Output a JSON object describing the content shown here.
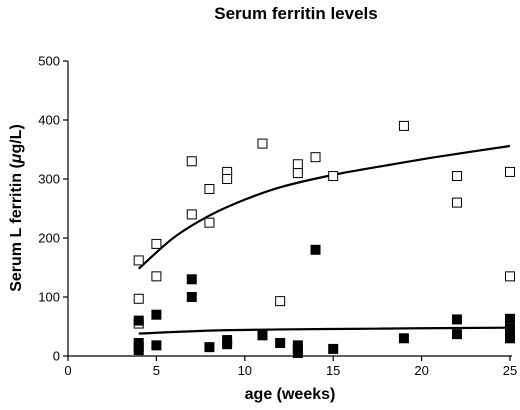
{
  "chart_data": {
    "type": "scatter",
    "title": "Serum ferritin levels",
    "xlabel": "age (weeks)",
    "ylabel_parts": [
      "Serum L ferritin (",
      "μ",
      "g/L)"
    ],
    "xlim": [
      0,
      25
    ],
    "ylim": [
      0,
      500
    ],
    "xticks": [
      0,
      5,
      10,
      15,
      20,
      25
    ],
    "yticks": [
      0,
      100,
      200,
      300,
      400,
      500
    ],
    "grid": false,
    "series": [
      {
        "marker": "open-square",
        "points": [
          [
            4,
            162
          ],
          [
            4,
            97
          ],
          [
            4,
            55
          ],
          [
            5,
            190
          ],
          [
            5,
            135
          ],
          [
            7,
            330
          ],
          [
            7,
            240
          ],
          [
            8,
            283
          ],
          [
            8,
            226
          ],
          [
            9,
            312
          ],
          [
            9,
            300
          ],
          [
            11,
            360
          ],
          [
            12,
            93
          ],
          [
            13,
            325
          ],
          [
            13,
            310
          ],
          [
            14,
            337
          ],
          [
            15,
            305
          ],
          [
            19,
            390
          ],
          [
            22,
            305
          ],
          [
            22,
            260
          ],
          [
            25,
            312
          ],
          [
            25,
            135
          ]
        ],
        "fit": [
          [
            4,
            148
          ],
          [
            6,
            201
          ],
          [
            8,
            238
          ],
          [
            10,
            265
          ],
          [
            12,
            286
          ],
          [
            15,
            307
          ],
          [
            18,
            323
          ],
          [
            21,
            338
          ],
          [
            25,
            356
          ]
        ]
      },
      {
        "marker": "filled-square",
        "points": [
          [
            4,
            60
          ],
          [
            4,
            22
          ],
          [
            4,
            15
          ],
          [
            4,
            10
          ],
          [
            5,
            70
          ],
          [
            5,
            18
          ],
          [
            7,
            130
          ],
          [
            7,
            100
          ],
          [
            8,
            15
          ],
          [
            9,
            27
          ],
          [
            9,
            20
          ],
          [
            11,
            35
          ],
          [
            12,
            22
          ],
          [
            13,
            18
          ],
          [
            13,
            12
          ],
          [
            13,
            5
          ],
          [
            14,
            180
          ],
          [
            15,
            12
          ],
          [
            19,
            30
          ],
          [
            22,
            62
          ],
          [
            22,
            37
          ],
          [
            25,
            63
          ],
          [
            25,
            46
          ],
          [
            25,
            30
          ]
        ],
        "fit": [
          [
            4,
            38
          ],
          [
            8,
            43
          ],
          [
            12,
            45
          ],
          [
            16,
            46
          ],
          [
            20,
            47
          ],
          [
            25,
            48
          ]
        ]
      }
    ]
  }
}
